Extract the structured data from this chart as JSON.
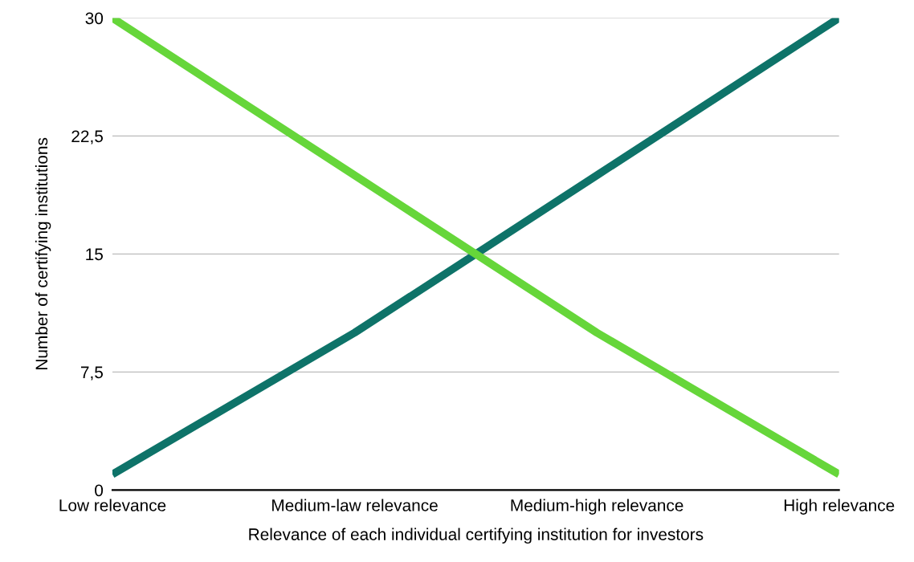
{
  "chart_data": {
    "type": "line",
    "xlabel": "Relevance of each individual certifying institution for investors",
    "ylabel": "Number of certifying institutions",
    "categories": [
      "Low relevance",
      "Medium-law relevance",
      "Medium-high relevance",
      "High relevance"
    ],
    "series": [
      {
        "color": "#0e7369",
        "values": [
          1,
          10,
          20,
          30
        ]
      },
      {
        "color": "#66d63a",
        "values": [
          30,
          20,
          10,
          1
        ]
      }
    ],
    "ylim": [
      0,
      30
    ],
    "yticks": [
      0,
      {
        "value": 7.5,
        "label": "7,5"
      },
      15,
      {
        "value": 22.5,
        "label": "22,5"
      },
      30
    ],
    "grid": "y",
    "legend": false,
    "marker": "none",
    "line_style": "solid"
  }
}
